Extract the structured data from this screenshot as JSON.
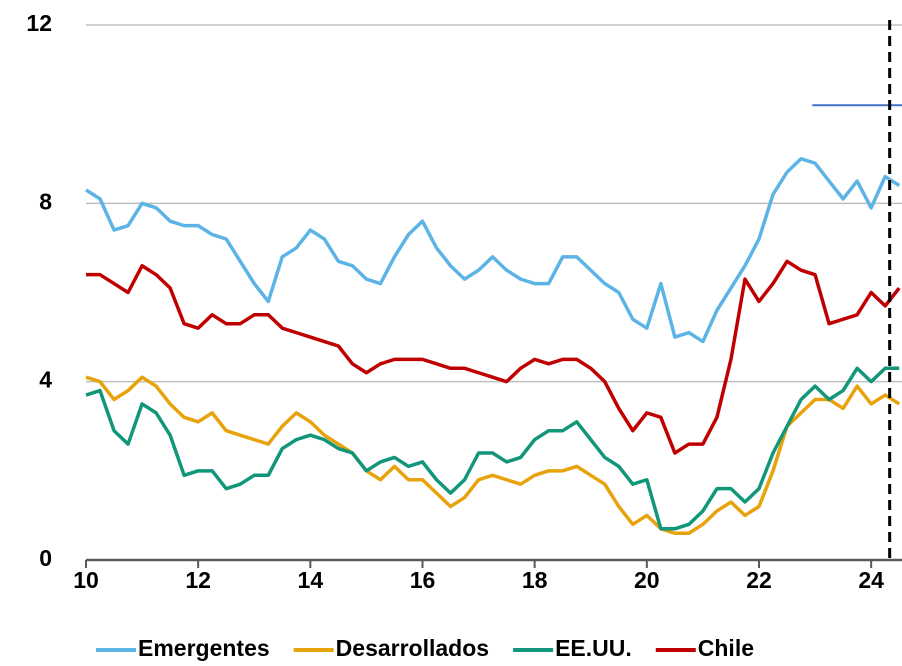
{
  "chart_data": {
    "type": "line",
    "x": [
      10,
      10.25,
      10.5,
      10.75,
      11,
      11.25,
      11.5,
      11.75,
      12,
      12.25,
      12.5,
      12.75,
      13,
      13.25,
      13.5,
      13.75,
      14,
      14.25,
      14.5,
      14.75,
      15,
      15.25,
      15.5,
      15.75,
      16,
      16.25,
      16.5,
      16.75,
      17,
      17.25,
      17.5,
      17.75,
      18,
      18.25,
      18.5,
      18.75,
      19,
      19.25,
      19.5,
      19.75,
      20,
      20.25,
      20.5,
      20.75,
      21,
      21.25,
      21.5,
      21.75,
      22,
      22.25,
      22.5,
      22.75,
      23,
      23.25,
      23.5,
      23.75,
      24,
      24.25,
      24.5
    ],
    "series": [
      {
        "name": "Emergentes",
        "color": "#5bb4e5",
        "values": [
          8.3,
          8.1,
          7.4,
          7.5,
          8.0,
          7.9,
          7.6,
          7.5,
          7.5,
          7.3,
          7.2,
          6.7,
          6.2,
          5.8,
          6.8,
          7.0,
          7.4,
          7.2,
          6.7,
          6.6,
          6.3,
          6.2,
          6.8,
          7.3,
          7.6,
          7.0,
          6.6,
          6.3,
          6.5,
          6.8,
          6.5,
          6.3,
          6.2,
          6.2,
          6.8,
          6.8,
          6.5,
          6.2,
          6.0,
          5.4,
          5.2,
          6.2,
          5.0,
          5.1,
          4.9,
          5.6,
          6.1,
          6.6,
          7.2,
          8.2,
          8.7,
          9.0,
          8.9,
          8.5,
          8.1,
          8.5,
          7.9,
          8.6,
          8.4
        ]
      },
      {
        "name": "Desarrollados",
        "color": "#e8a20c",
        "values": [
          4.1,
          4.0,
          3.6,
          3.8,
          4.1,
          3.9,
          3.5,
          3.2,
          3.1,
          3.3,
          2.9,
          2.8,
          2.7,
          2.6,
          3.0,
          3.3,
          3.1,
          2.8,
          2.6,
          2.4,
          2.0,
          1.8,
          2.1,
          1.8,
          1.8,
          1.5,
          1.2,
          1.4,
          1.8,
          1.9,
          1.8,
          1.7,
          1.9,
          2.0,
          2.0,
          2.1,
          1.9,
          1.7,
          1.2,
          0.8,
          1.0,
          0.7,
          0.6,
          0.6,
          0.8,
          1.1,
          1.3,
          1.0,
          1.2,
          2.0,
          3.0,
          3.3,
          3.6,
          3.6,
          3.4,
          3.9,
          3.5,
          3.7,
          3.5
        ]
      },
      {
        "name": "EE.UU.",
        "color": "#11967a",
        "values": [
          3.7,
          3.8,
          2.9,
          2.6,
          3.5,
          3.3,
          2.8,
          1.9,
          2.0,
          2.0,
          1.6,
          1.7,
          1.9,
          1.9,
          2.5,
          2.7,
          2.8,
          2.7,
          2.5,
          2.4,
          2.0,
          2.2,
          2.3,
          2.1,
          2.2,
          1.8,
          1.5,
          1.8,
          2.4,
          2.4,
          2.2,
          2.3,
          2.7,
          2.9,
          2.9,
          3.1,
          2.7,
          2.3,
          2.1,
          1.7,
          1.8,
          0.7,
          0.7,
          0.8,
          1.1,
          1.6,
          1.6,
          1.3,
          1.6,
          2.4,
          3.0,
          3.6,
          3.9,
          3.6,
          3.8,
          4.3,
          4.0,
          4.3,
          4.3
        ]
      },
      {
        "name": "Chile",
        "color": "#c00000",
        "values": [
          6.4,
          6.4,
          6.2,
          6.0,
          6.6,
          6.4,
          6.1,
          5.3,
          5.2,
          5.5,
          5.3,
          5.3,
          5.5,
          5.5,
          5.2,
          5.1,
          5.0,
          4.9,
          4.8,
          4.4,
          4.2,
          4.4,
          4.5,
          4.5,
          4.5,
          4.4,
          4.3,
          4.3,
          4.2,
          4.1,
          4.0,
          4.3,
          4.5,
          4.4,
          4.5,
          4.5,
          4.3,
          4.0,
          3.4,
          2.9,
          3.3,
          3.2,
          2.4,
          2.6,
          2.6,
          3.2,
          4.5,
          6.3,
          5.8,
          6.2,
          6.7,
          6.5,
          6.4,
          5.3,
          5.4,
          5.5,
          6.0,
          5.7,
          6.1
        ]
      }
    ],
    "xlim": [
      10,
      24.55
    ],
    "xticks": [
      10,
      12,
      14,
      16,
      18,
      20,
      22,
      24
    ],
    "ylim": [
      0,
      12
    ],
    "yticks": [
      0,
      4,
      8,
      12
    ],
    "grid": true,
    "ref_line": {
      "y": 10.2,
      "x": [
        22.95,
        24.55
      ],
      "color": "#4472c4"
    },
    "vline": {
      "x": 24.33
    },
    "legend": "bottom"
  }
}
